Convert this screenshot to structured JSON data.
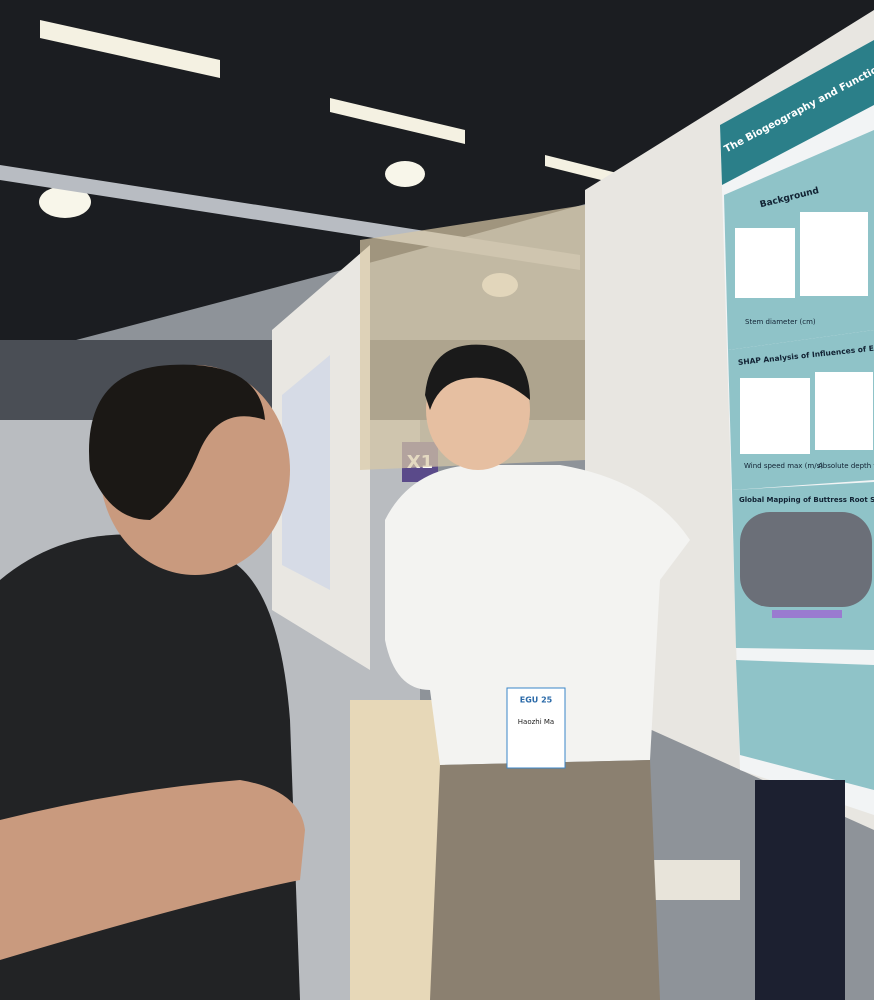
{
  "signs": {
    "hall": "X1"
  },
  "poster": {
    "title": "The Biogeography and Functional Under",
    "sections": [
      "Background",
      "SHAP Analysis of Influences of En",
      "Global Mapping of Buttress Root Species Fraction"
    ],
    "axis_labels": [
      "Stem diameter (cm)",
      "Wind speed max (m/s)",
      "Absolute depth to"
    ]
  },
  "badge": {
    "event": "EGU 25",
    "name": "Haozhi Ma"
  }
}
